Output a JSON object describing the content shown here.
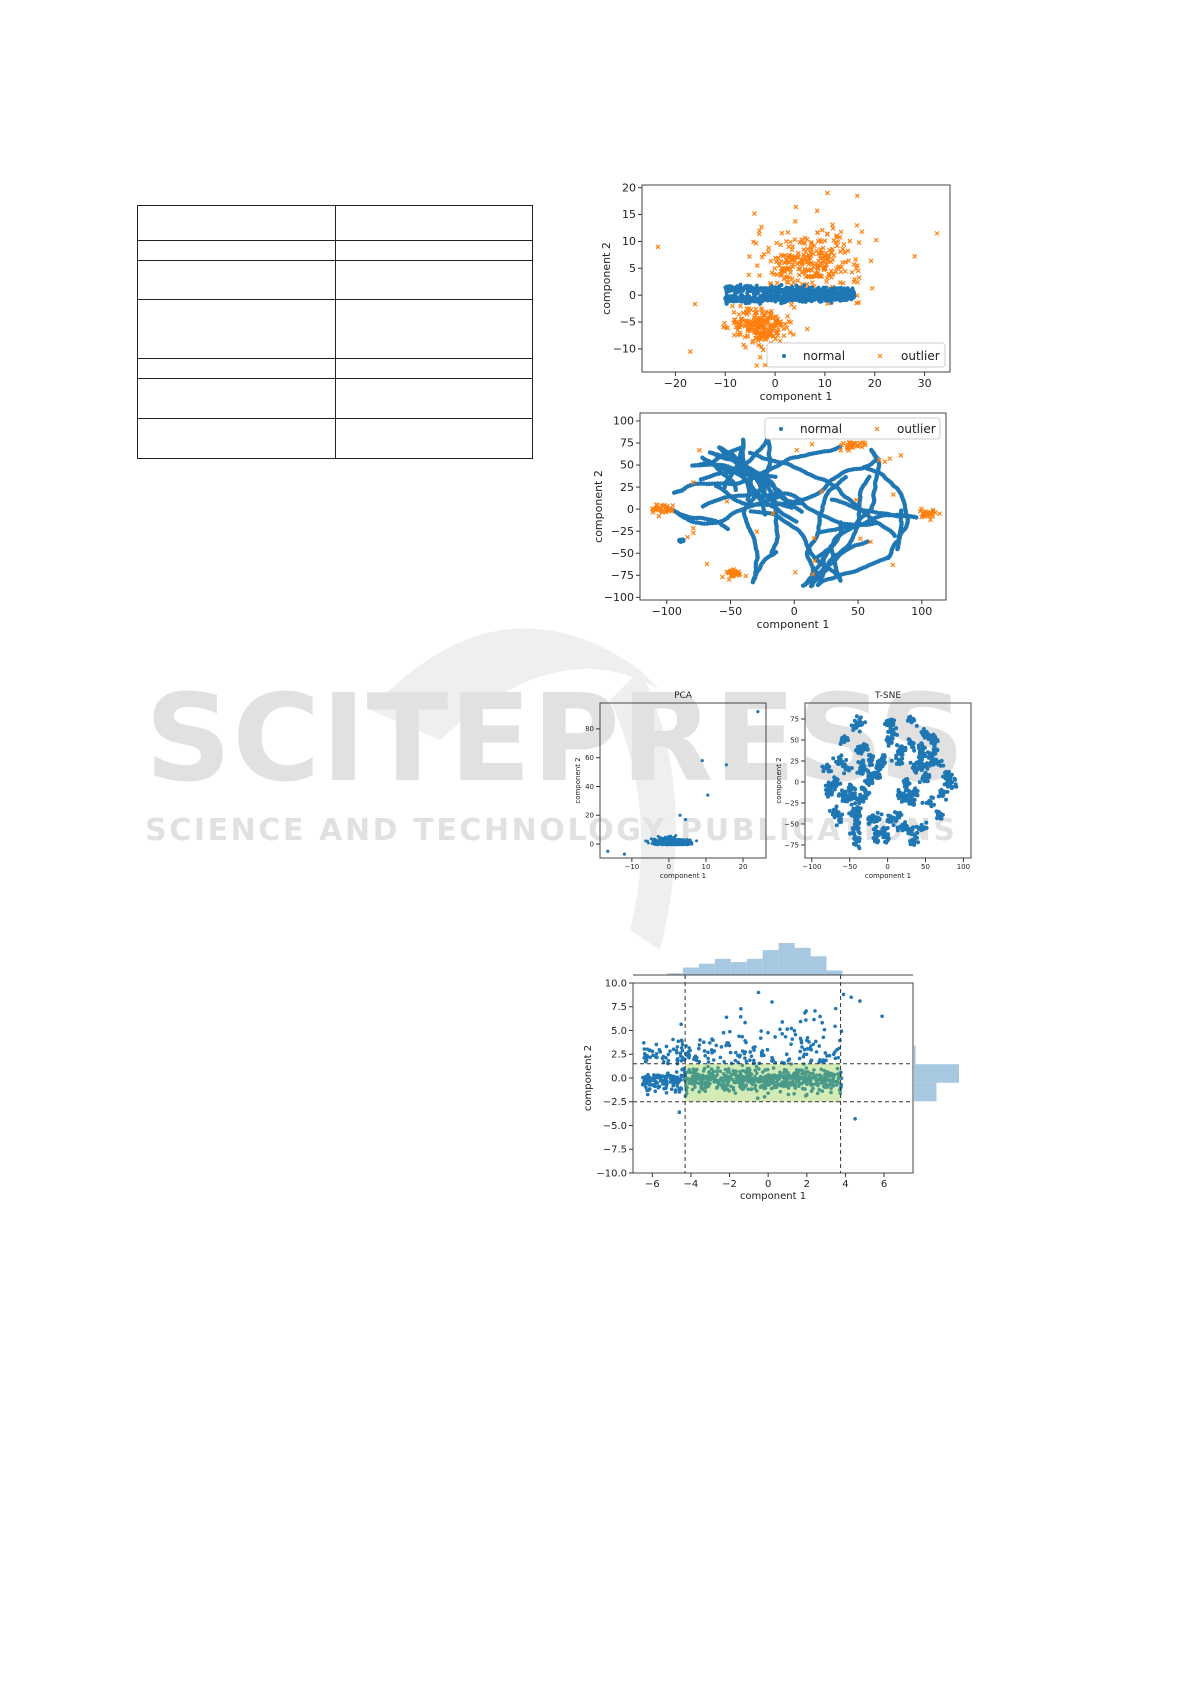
{
  "table": {
    "rows": 7,
    "columns": 2,
    "row_heights_relative": [
      35,
      20,
      39,
      59,
      20,
      40,
      40
    ]
  },
  "watermark": {
    "line1": "SCITEPRESS",
    "line2": "SCIENCE AND TECHNOLOGY PUBLICATIONS"
  },
  "colors": {
    "normal": "#1f77b4",
    "outlier": "#ff7f0e",
    "hist": "#a6c8e0",
    "box_fill": "#d5ebb5",
    "box_points": "#4a9a8a"
  },
  "chart_data": [
    {
      "type": "scatter",
      "xlabel": "component 1",
      "ylabel": "component 2",
      "xlim": [
        -26.7,
        35.1
      ],
      "ylim": [
        -14.3,
        20.5
      ],
      "xticks": [
        -20,
        -10,
        0,
        10,
        20,
        30
      ],
      "yticks": [
        -10,
        -5,
        0,
        5,
        10,
        15,
        20
      ],
      "legend": {
        "placement": "bottom-right",
        "entries": [
          "normal",
          "outlier"
        ]
      },
      "series": [
        {
          "name": "normal",
          "marker": "dot",
          "x_range": [
            -10,
            16
          ],
          "y_range": [
            -2,
            2
          ]
        },
        {
          "name": "outlier",
          "marker": "x",
          "clusters": [
            {
              "center": [
                7,
                6
              ],
              "spread": [
                9,
                4.5
              ]
            },
            {
              "center": [
                -3,
                -6
              ],
              "spread": [
                5,
                2.5
              ]
            }
          ],
          "sample_points": [
            [
              -23.5,
              9
            ],
            [
              32.5,
              11.5
            ],
            [
              10.5,
              19
            ],
            [
              16.5,
              18.5
            ],
            [
              -2,
              -13
            ],
            [
              -17,
              -10.5
            ]
          ]
        }
      ]
    },
    {
      "type": "scatter",
      "xlabel": "component 1",
      "ylabel": "component 2",
      "xlim": [
        -121,
        119
      ],
      "ylim": [
        -103,
        109
      ],
      "xticks": [
        -100,
        -50,
        0,
        50,
        100
      ],
      "yticks": [
        -100,
        -75,
        -50,
        -25,
        0,
        25,
        50,
        75,
        100
      ],
      "legend": {
        "placement": "top-right",
        "entries": [
          "normal",
          "outlier"
        ]
      },
      "series": [
        {
          "name": "normal",
          "marker": "dot"
        },
        {
          "name": "outlier",
          "marker": "x",
          "clusters": [
            {
              "center": [
                45,
                72
              ]
            },
            {
              "center": [
                -48,
                -73
              ]
            },
            {
              "center": [
                -103,
                0
              ]
            },
            {
              "center": [
                105,
                -5
              ]
            }
          ]
        }
      ]
    },
    {
      "type": "scatter",
      "title": "PCA",
      "xlabel": "component 1",
      "ylabel": "component 2",
      "xlim": [
        -18.6,
        26.2
      ],
      "ylim": [
        -9.7,
        98
      ],
      "xticks": [
        -10,
        0,
        10,
        20
      ],
      "yticks": [
        0,
        20,
        40,
        60,
        80
      ],
      "series": [
        {
          "marker": "dot",
          "cluster": {
            "center": [
              0,
              1
            ],
            "spread": [
              4,
              2
            ]
          },
          "sample_points": [
            [
              24,
              92
            ],
            [
              9,
              58
            ],
            [
              15.5,
              55
            ],
            [
              10.5,
              34
            ],
            [
              -16.5,
              -5
            ],
            [
              -12,
              -7
            ],
            [
              3,
              20
            ],
            [
              4.5,
              17
            ]
          ]
        }
      ]
    },
    {
      "type": "scatter",
      "title": "T-SNE",
      "xlabel": "component 1",
      "ylabel": "component 2",
      "xlim": [
        -109,
        110
      ],
      "ylim": [
        -90.5,
        94
      ],
      "xticks": [
        -100,
        -50,
        0,
        50,
        100
      ],
      "yticks": [
        -75,
        -50,
        -25,
        0,
        25,
        50,
        75
      ],
      "series": [
        {
          "marker": "dot",
          "center": [
            0,
            0
          ],
          "radius": 90
        }
      ]
    },
    {
      "type": "scatter",
      "xlabel": "component 1",
      "ylabel": "component 2",
      "xlim": [
        -7,
        7.5
      ],
      "ylim": [
        -10,
        10
      ],
      "xticks": [
        -6,
        -4,
        -2,
        0,
        2,
        4,
        6
      ],
      "yticks": [
        -10.0,
        -7.5,
        -5.0,
        -2.5,
        0.0,
        2.5,
        5.0,
        7.5,
        10.0
      ],
      "thresholds": {
        "x": [
          -4.3,
          3.75
        ],
        "y": [
          -2.5,
          1.5
        ]
      },
      "sample_points": [
        [
          -0.5,
          9
        ],
        [
          3.9,
          8.8
        ],
        [
          4.3,
          8.5
        ],
        [
          4.75,
          8.1
        ],
        [
          5.9,
          6.5
        ],
        [
          -4.6,
          -3.6
        ],
        [
          4.5,
          -4.3
        ],
        [
          0.2,
          8
        ]
      ],
      "top_histogram": {
        "bin_start": -5.24,
        "bin_width": 0.826,
        "counts": [
          5,
          23,
          35,
          50,
          40,
          50,
          77,
          99,
          84,
          58,
          14
        ]
      },
      "right_histogram": {
        "bin_edges": [
          -2.45,
          -0.5,
          1.45,
          3.4
        ],
        "counts": [
          70,
          140,
          5
        ]
      }
    }
  ]
}
